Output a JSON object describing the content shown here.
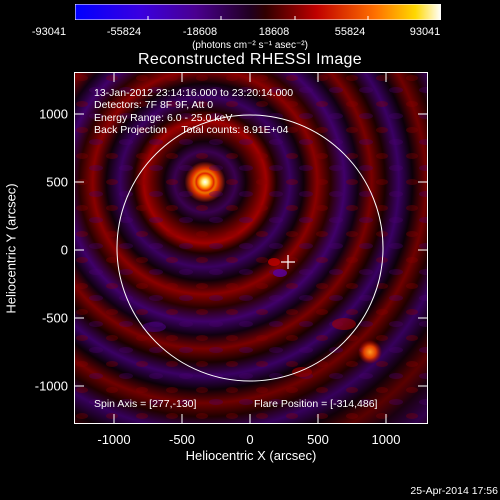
{
  "colorbar": {
    "ticks": [
      "-93041",
      "-55824",
      "-18608",
      "18608",
      "55824",
      "93041"
    ],
    "units": "(photons cm⁻² s⁻¹ asec⁻²)",
    "min": -93041,
    "max": 93041
  },
  "chart_data": {
    "type": "heatmap",
    "title": "Reconstructed RHESSI Image",
    "xlabel": "Heliocentric X (arcsec)",
    "ylabel": "Heliocentric Y (arcsec)",
    "xlim": [
      -1300,
      1300
    ],
    "ylim": [
      -1200,
      1300
    ],
    "x_ticks": [
      "-1000",
      "-500",
      "0",
      "500",
      "1000"
    ],
    "y_ticks": [
      "1000",
      "500",
      "0",
      "-500",
      "-1000"
    ],
    "solar_limb_radius": 975,
    "sources": [
      {
        "x": -314,
        "y": 486,
        "level": "peak"
      },
      {
        "x": 890,
        "y": -750,
        "level": "secondary"
      }
    ],
    "spin_axis_marker": {
      "x": 277,
      "y": -130
    }
  },
  "info": {
    "line1": "13-Jan-2012 23:14:16.000 to 23:20:14.000",
    "line2": "Detectors: 7F 8F 9F, Att 0",
    "line3": "Energy Range: 6.0 - 25.0 keV",
    "line4": "Back Projection     Total counts: 8.91E+04"
  },
  "footer": {
    "spin_axis": "Spin Axis = [277,-130]",
    "flare_position": "Flare Position = [-314,486]",
    "date": "25-Apr-2014 17:56"
  }
}
